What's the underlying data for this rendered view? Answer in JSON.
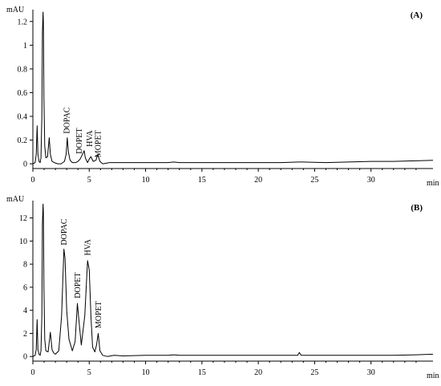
{
  "chart_data": [
    {
      "type": "line",
      "panel_label": "(A)",
      "ylabel": "mAU",
      "xlabel": "min",
      "xlim": [
        0,
        35.5
      ],
      "ylim": [
        -0.04,
        1.3
      ],
      "x_ticks": [
        0,
        5,
        10,
        15,
        20,
        25,
        30
      ],
      "y_ticks": [
        0,
        0.2,
        0.4,
        0.6,
        0.8,
        1,
        1.2
      ],
      "y_tick_labels": [
        "0",
        "0.2",
        "0.4",
        "0.6",
        "0.8",
        "1",
        "1.2"
      ],
      "series": [
        {
          "x": [
            0,
            0.2,
            0.3,
            0.38,
            0.45,
            0.55,
            0.65,
            0.72,
            0.8,
            0.85,
            0.9,
            0.93,
            0.98,
            1.05,
            1.15,
            1.3,
            1.45,
            1.55,
            1.7,
            1.9,
            2.2,
            2.5,
            2.8,
            2.95,
            3.05,
            3.15,
            3.3,
            3.5,
            3.8,
            4.0,
            4.2,
            4.45,
            4.55,
            4.65,
            4.85,
            5.0,
            5.15,
            5.35,
            5.6,
            5.75,
            5.95,
            6.2,
            6.8,
            8,
            10,
            12,
            12.5,
            13,
            14,
            16,
            18,
            20,
            22,
            23.6,
            24,
            26,
            28,
            30,
            32,
            34,
            35.5
          ],
          "y": [
            0.0,
            0.01,
            0.08,
            0.32,
            0.08,
            0.02,
            0.01,
            0.05,
            0.4,
            1.1,
            1.28,
            1.2,
            0.55,
            0.15,
            0.05,
            0.06,
            0.22,
            0.08,
            0.02,
            0.01,
            0.0,
            0.0,
            0.02,
            0.08,
            0.22,
            0.1,
            0.03,
            0.01,
            0.01,
            0.02,
            0.04,
            0.09,
            0.11,
            0.05,
            0.01,
            0.04,
            0.06,
            0.02,
            0.03,
            0.08,
            0.02,
            0.0,
            0.01,
            0.01,
            0.01,
            0.01,
            0.015,
            0.01,
            0.01,
            0.01,
            0.01,
            0.01,
            0.01,
            0.015,
            0.015,
            0.01,
            0.015,
            0.02,
            0.02,
            0.025,
            0.03
          ]
        }
      ],
      "annotations": [
        {
          "text": "DOPAC",
          "x": 3.0,
          "y": 0.24
        },
        {
          "text": "DOPET",
          "x": 4.1,
          "y": 0.07
        },
        {
          "text": "HVA",
          "x": 5.0,
          "y": 0.13
        },
        {
          "text": "MOPET",
          "x": 5.75,
          "y": 0.04
        }
      ]
    },
    {
      "type": "line",
      "panel_label": "(B)",
      "ylabel": "mAU",
      "xlabel": "min",
      "xlim": [
        0,
        35.5
      ],
      "ylim": [
        -0.4,
        13.5
      ],
      "x_ticks": [
        0,
        5,
        10,
        15,
        20,
        25,
        30
      ],
      "y_ticks": [
        0,
        2,
        4,
        6,
        8,
        10,
        12
      ],
      "y_tick_labels": [
        "0",
        "2",
        "4",
        "6",
        "8",
        "10",
        "12"
      ],
      "series": [
        {
          "x": [
            0,
            0.2,
            0.3,
            0.38,
            0.45,
            0.55,
            0.65,
            0.72,
            0.8,
            0.85,
            0.9,
            0.93,
            0.98,
            1.05,
            1.15,
            1.35,
            1.55,
            1.7,
            1.85,
            2.0,
            2.3,
            2.55,
            2.75,
            2.85,
            3.0,
            3.2,
            3.5,
            3.75,
            3.95,
            4.1,
            4.3,
            4.6,
            4.85,
            5.0,
            5.15,
            5.3,
            5.5,
            5.65,
            5.8,
            5.95,
            6.2,
            6.6,
            7.2,
            8,
            10,
            12,
            12.5,
            13,
            14,
            16,
            18,
            20,
            22,
            23.5,
            23.65,
            23.8,
            24,
            26,
            28,
            30,
            32,
            34,
            35.5
          ],
          "y": [
            0.0,
            0.1,
            0.6,
            3.2,
            0.6,
            0.2,
            0.1,
            0.5,
            3.5,
            11.5,
            13.2,
            12.5,
            6.0,
            1.5,
            0.5,
            0.4,
            2.1,
            0.6,
            0.3,
            0.2,
            0.5,
            3.5,
            9.3,
            8.5,
            4.0,
            1.5,
            0.5,
            1.3,
            4.6,
            3.0,
            1.0,
            3.5,
            8.3,
            7.5,
            3.5,
            0.8,
            0.4,
            1.0,
            2.0,
            0.5,
            0.1,
            0.0,
            0.1,
            0.05,
            0.1,
            0.1,
            0.15,
            0.1,
            0.1,
            0.1,
            0.1,
            0.1,
            0.1,
            0.1,
            0.35,
            0.1,
            0.1,
            0.1,
            0.1,
            0.1,
            0.1,
            0.15,
            0.2
          ]
        }
      ],
      "annotations": [
        {
          "text": "DOPAC",
          "x": 2.75,
          "y": 9.5
        },
        {
          "text": "DOPET",
          "x": 3.95,
          "y": 4.9
        },
        {
          "text": "HVA",
          "x": 4.85,
          "y": 8.6
        },
        {
          "text": "MOPET",
          "x": 5.8,
          "y": 2.3
        }
      ]
    }
  ]
}
